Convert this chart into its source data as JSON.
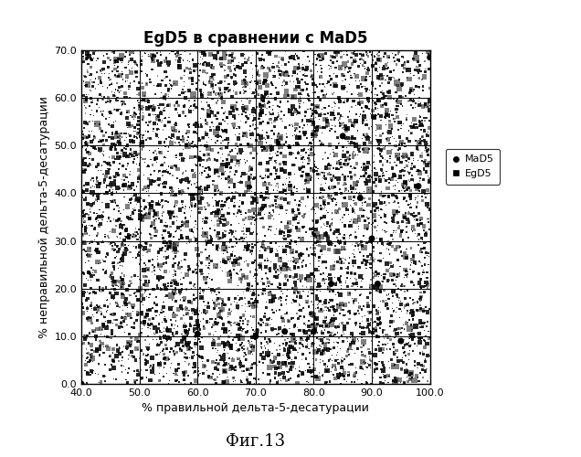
{
  "title": "EgD5 в сравнении с MaD5",
  "xlabel": "% правильной дельта-5-десатурации",
  "ylabel": "% неправильной дельта-5-десатурации",
  "caption": "Фиг.13",
  "xlim": [
    40.0,
    100.0
  ],
  "ylim": [
    0.0,
    70.0
  ],
  "xticks": [
    40.0,
    50.0,
    60.0,
    70.0,
    80.0,
    90.0,
    100.0
  ],
  "yticks": [
    0.0,
    10.0,
    20.0,
    30.0,
    40.0,
    50.0,
    60.0,
    70.0
  ],
  "mad5_points": [
    [
      40.0,
      0.0
    ],
    [
      60.0,
      10.5
    ],
    [
      70.0,
      10.0
    ],
    [
      75.0,
      11.0
    ],
    [
      80.0,
      11.0
    ],
    [
      83.0,
      21.0
    ],
    [
      85.0,
      52.0
    ],
    [
      88.0,
      39.0
    ],
    [
      90.0,
      30.5
    ],
    [
      91.0,
      21.0
    ],
    [
      95.0,
      9.0
    ],
    [
      98.0,
      41.5
    ],
    [
      100.0,
      68.5
    ]
  ],
  "background_color": "#ffffff",
  "plot_bg_color": "#ffffff",
  "noise_density": 5000,
  "mad5_color": "#000000",
  "egd5_color": "#000000",
  "title_fontsize": 12,
  "axis_label_fontsize": 9,
  "tick_fontsize": 8,
  "caption_fontsize": 13,
  "grid_color": "#000000",
  "grid_linewidth": 0.7,
  "legend_fontsize": 8
}
